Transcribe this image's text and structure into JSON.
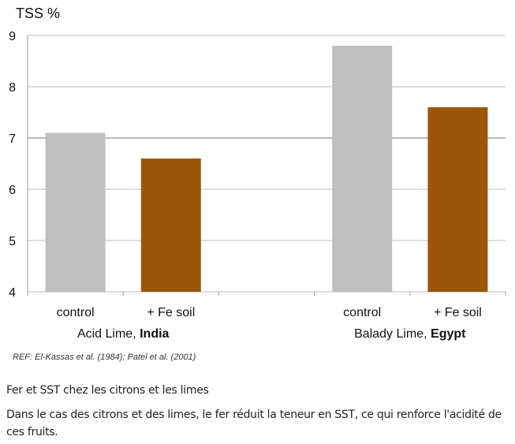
{
  "chart_data": {
    "type": "bar",
    "ylabel": "TSS %",
    "ylim": [
      4,
      9
    ],
    "yticks": [
      "4",
      "5",
      "6",
      "7",
      "8",
      "9"
    ],
    "grid": true,
    "categories": [
      "control",
      "+ Fe soil",
      "",
      "control",
      "+ Fe soil"
    ],
    "values": [
      7.1,
      6.6,
      null,
      8.8,
      7.6
    ],
    "bar_colors": [
      "#bfbfbf",
      "#9c570b",
      null,
      "#bfbfbf",
      "#9c570b"
    ],
    "groups": [
      {
        "label": "Acid Lime, ",
        "bold": "India"
      },
      {
        "label": "Balady Lime, ",
        "bold": "Egypt"
      }
    ]
  },
  "reference": "REF: El-Kassas et al. (1984);  Patel et al. (2001)",
  "caption": {
    "title": "Fer et SST chez les citrons et les limes",
    "text": "Dans le cas des citrons et des limes, le fer réduit la teneur en SST, ce qui renforce l'acidité de ces fruits."
  }
}
